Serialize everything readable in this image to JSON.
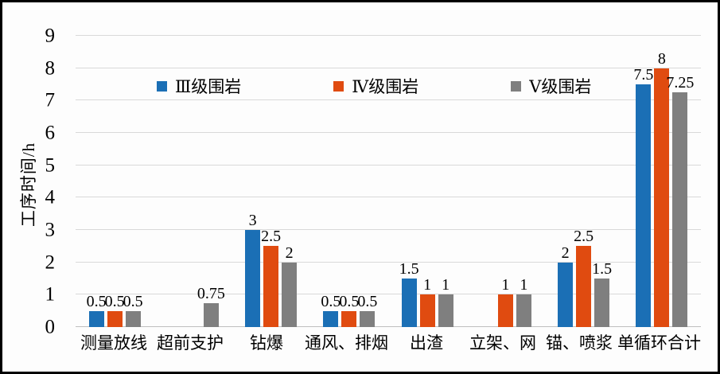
{
  "figure": {
    "background": "#fdfdfd",
    "border_color": "#000000"
  },
  "chart_data": {
    "type": "bar",
    "title": "",
    "xlabel": "",
    "ylabel": "工序时间/h",
    "ylim": [
      0,
      9
    ],
    "ytick_interval": 1,
    "grid": true,
    "legend_position": "top-center-inside",
    "categories": [
      "测量放线",
      "超前支护",
      "钻爆",
      "通风、排烟",
      "出渣",
      "立架、网",
      "锚、喷浆",
      "单循环合计"
    ],
    "series": [
      {
        "name": "Ⅲ级围岩",
        "color": "#1b6fb5",
        "values": [
          0.5,
          null,
          3,
          0.5,
          1.5,
          null,
          2,
          7.5
        ]
      },
      {
        "name": "Ⅳ级围岩",
        "color": "#e04b10",
        "values": [
          0.5,
          null,
          2.5,
          0.5,
          1,
          1,
          2.5,
          8
        ]
      },
      {
        "name": "Ⅴ级围岩",
        "color": "#7f7f7f",
        "values": [
          0.5,
          0.75,
          2,
          0.5,
          1,
          1,
          1.5,
          7.25
        ]
      }
    ],
    "colors": {
      "gridline": "#d9d9d9",
      "axis_line": "#bfbfbf",
      "text": "#000000"
    }
  }
}
